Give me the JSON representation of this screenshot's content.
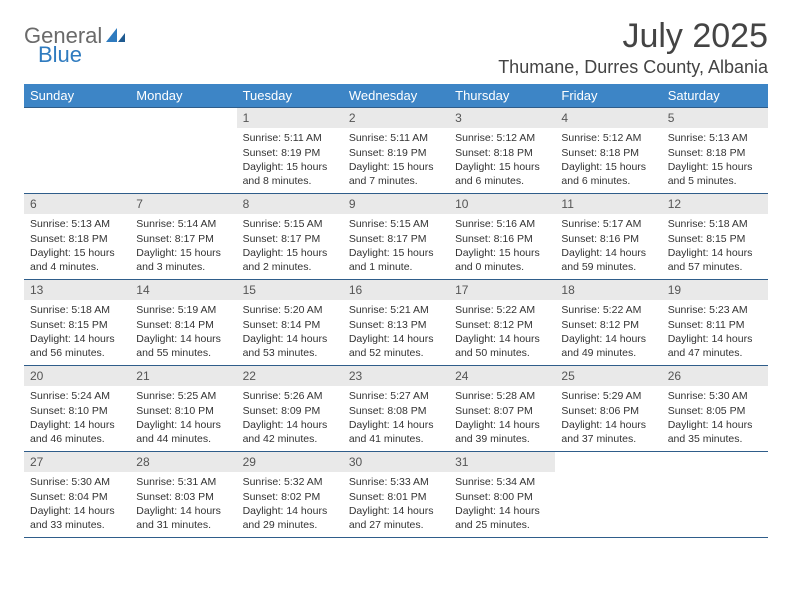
{
  "logo": {
    "word1": "General",
    "word2": "Blue"
  },
  "title": "July 2025",
  "location": "Thumane, Durres County, Albania",
  "colors": {
    "header_bg": "#3d85c6",
    "header_text": "#ffffff",
    "rule": "#2f5d8a",
    "daynum_bg": "#e9e9e9",
    "logo_gray": "#6a6a6a",
    "logo_blue": "#2f7bbf"
  },
  "weekdays": [
    "Sunday",
    "Monday",
    "Tuesday",
    "Wednesday",
    "Thursday",
    "Friday",
    "Saturday"
  ],
  "layout": {
    "cols": 7,
    "rows": 5,
    "first_weekday_index": 2,
    "days_in_month": 31
  },
  "days": {
    "1": {
      "sunrise": "5:11 AM",
      "sunset": "8:19 PM",
      "daylight": "15 hours and 8 minutes."
    },
    "2": {
      "sunrise": "5:11 AM",
      "sunset": "8:19 PM",
      "daylight": "15 hours and 7 minutes."
    },
    "3": {
      "sunrise": "5:12 AM",
      "sunset": "8:18 PM",
      "daylight": "15 hours and 6 minutes."
    },
    "4": {
      "sunrise": "5:12 AM",
      "sunset": "8:18 PM",
      "daylight": "15 hours and 6 minutes."
    },
    "5": {
      "sunrise": "5:13 AM",
      "sunset": "8:18 PM",
      "daylight": "15 hours and 5 minutes."
    },
    "6": {
      "sunrise": "5:13 AM",
      "sunset": "8:18 PM",
      "daylight": "15 hours and 4 minutes."
    },
    "7": {
      "sunrise": "5:14 AM",
      "sunset": "8:17 PM",
      "daylight": "15 hours and 3 minutes."
    },
    "8": {
      "sunrise": "5:15 AM",
      "sunset": "8:17 PM",
      "daylight": "15 hours and 2 minutes."
    },
    "9": {
      "sunrise": "5:15 AM",
      "sunset": "8:17 PM",
      "daylight": "15 hours and 1 minute."
    },
    "10": {
      "sunrise": "5:16 AM",
      "sunset": "8:16 PM",
      "daylight": "15 hours and 0 minutes."
    },
    "11": {
      "sunrise": "5:17 AM",
      "sunset": "8:16 PM",
      "daylight": "14 hours and 59 minutes."
    },
    "12": {
      "sunrise": "5:18 AM",
      "sunset": "8:15 PM",
      "daylight": "14 hours and 57 minutes."
    },
    "13": {
      "sunrise": "5:18 AM",
      "sunset": "8:15 PM",
      "daylight": "14 hours and 56 minutes."
    },
    "14": {
      "sunrise": "5:19 AM",
      "sunset": "8:14 PM",
      "daylight": "14 hours and 55 minutes."
    },
    "15": {
      "sunrise": "5:20 AM",
      "sunset": "8:14 PM",
      "daylight": "14 hours and 53 minutes."
    },
    "16": {
      "sunrise": "5:21 AM",
      "sunset": "8:13 PM",
      "daylight": "14 hours and 52 minutes."
    },
    "17": {
      "sunrise": "5:22 AM",
      "sunset": "8:12 PM",
      "daylight": "14 hours and 50 minutes."
    },
    "18": {
      "sunrise": "5:22 AM",
      "sunset": "8:12 PM",
      "daylight": "14 hours and 49 minutes."
    },
    "19": {
      "sunrise": "5:23 AM",
      "sunset": "8:11 PM",
      "daylight": "14 hours and 47 minutes."
    },
    "20": {
      "sunrise": "5:24 AM",
      "sunset": "8:10 PM",
      "daylight": "14 hours and 46 minutes."
    },
    "21": {
      "sunrise": "5:25 AM",
      "sunset": "8:10 PM",
      "daylight": "14 hours and 44 minutes."
    },
    "22": {
      "sunrise": "5:26 AM",
      "sunset": "8:09 PM",
      "daylight": "14 hours and 42 minutes."
    },
    "23": {
      "sunrise": "5:27 AM",
      "sunset": "8:08 PM",
      "daylight": "14 hours and 41 minutes."
    },
    "24": {
      "sunrise": "5:28 AM",
      "sunset": "8:07 PM",
      "daylight": "14 hours and 39 minutes."
    },
    "25": {
      "sunrise": "5:29 AM",
      "sunset": "8:06 PM",
      "daylight": "14 hours and 37 minutes."
    },
    "26": {
      "sunrise": "5:30 AM",
      "sunset": "8:05 PM",
      "daylight": "14 hours and 35 minutes."
    },
    "27": {
      "sunrise": "5:30 AM",
      "sunset": "8:04 PM",
      "daylight": "14 hours and 33 minutes."
    },
    "28": {
      "sunrise": "5:31 AM",
      "sunset": "8:03 PM",
      "daylight": "14 hours and 31 minutes."
    },
    "29": {
      "sunrise": "5:32 AM",
      "sunset": "8:02 PM",
      "daylight": "14 hours and 29 minutes."
    },
    "30": {
      "sunrise": "5:33 AM",
      "sunset": "8:01 PM",
      "daylight": "14 hours and 27 minutes."
    },
    "31": {
      "sunrise": "5:34 AM",
      "sunset": "8:00 PM",
      "daylight": "14 hours and 25 minutes."
    }
  },
  "labels": {
    "sunrise": "Sunrise:",
    "sunset": "Sunset:",
    "daylight": "Daylight:"
  }
}
